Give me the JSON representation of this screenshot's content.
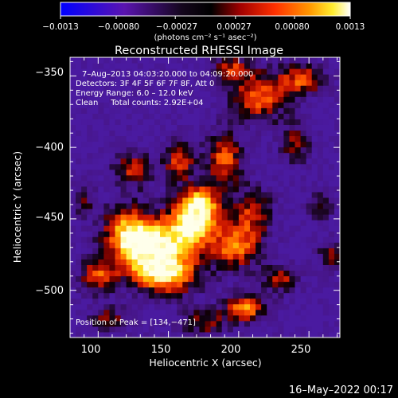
{
  "chart_data": {
    "type": "heatmap",
    "title": "Reconstructed RHESSI Image",
    "xlabel": "Heliocentric X (arcsec)",
    "ylabel": "Heliocentric Y (arcsec)",
    "xlim": [
      80,
      272
    ],
    "ylim": [
      -533,
      -337
    ],
    "x_ticks": [
      100,
      150,
      200,
      250
    ],
    "y_ticks": [
      -350,
      -400,
      -450,
      -500
    ],
    "x_tick_labels": [
      "100",
      "150",
      "200",
      "250"
    ],
    "y_tick_labels": [
      "−350",
      "−400",
      "−450",
      "−500"
    ],
    "colorbar": {
      "range": [
        -0.0013,
        0.0013
      ],
      "tick_labels": [
        "−0.0013",
        "−0.00080",
        "−0.00027",
        "0.00027",
        "0.00080",
        "0.0013"
      ],
      "units_label": "(photons cm⁻² s⁻¹ asec⁻²)"
    },
    "annotations": [
      "7–Aug–2013 04:03:20.000 to 04:09:20.000",
      "Detectors: 3F 4F 5F 6F 7F 8F, Att 0",
      "Energy Range: 6.0 – 12.0 keV",
      "Clean     Total counts: 2.92E+04",
      "Position of Peak = [134,−471]"
    ],
    "peak": [
      134,
      -471
    ],
    "sources": [
      {
        "x": 134,
        "y": -471,
        "peak": 1.0,
        "sx": 16,
        "sy": 13
      },
      {
        "x": 165,
        "y": -457,
        "peak": 0.82,
        "sx": 14,
        "sy": 12
      },
      {
        "x": 172,
        "y": -440,
        "peak": 0.86,
        "sx": 10,
        "sy": 9
      },
      {
        "x": 150,
        "y": -488,
        "peak": 0.78,
        "sx": 16,
        "sy": 10
      },
      {
        "x": 120,
        "y": -455,
        "peak": 0.55,
        "sx": 12,
        "sy": 12
      },
      {
        "x": 198,
        "y": -470,
        "peak": 0.65,
        "sx": 12,
        "sy": 11
      },
      {
        "x": 210,
        "y": -445,
        "peak": 0.5,
        "sx": 10,
        "sy": 12
      },
      {
        "x": 205,
        "y": -512,
        "peak": 0.7,
        "sx": 10,
        "sy": 7
      },
      {
        "x": 230,
        "y": -492,
        "peak": 0.45,
        "sx": 9,
        "sy": 7
      },
      {
        "x": 100,
        "y": -490,
        "peak": 0.55,
        "sx": 9,
        "sy": 9
      },
      {
        "x": 125,
        "y": -415,
        "peak": 0.48,
        "sx": 10,
        "sy": 9
      },
      {
        "x": 158,
        "y": -410,
        "peak": 0.55,
        "sx": 8,
        "sy": 10
      },
      {
        "x": 190,
        "y": -408,
        "peak": 0.6,
        "sx": 9,
        "sy": 14
      },
      {
        "x": 215,
        "y": -365,
        "peak": 0.62,
        "sx": 14,
        "sy": 12
      },
      {
        "x": 245,
        "y": -352,
        "peak": 0.55,
        "sx": 12,
        "sy": 8
      },
      {
        "x": 195,
        "y": -345,
        "peak": 0.48,
        "sx": 10,
        "sy": 7
      },
      {
        "x": 240,
        "y": -398,
        "peak": 0.4,
        "sx": 8,
        "sy": 10
      },
      {
        "x": 258,
        "y": -440,
        "peak": 0.4,
        "sx": 6,
        "sy": 7
      },
      {
        "x": 265,
        "y": -475,
        "peak": 0.42,
        "sx": 6,
        "sy": 7
      },
      {
        "x": 108,
        "y": -520,
        "peak": 0.4,
        "sx": 10,
        "sy": 6
      },
      {
        "x": 175,
        "y": -522,
        "peak": 0.42,
        "sx": 12,
        "sy": 7
      },
      {
        "x": 90,
        "y": -437,
        "peak": 0.3,
        "sx": 6,
        "sy": 9
      }
    ]
  },
  "footer": {
    "timestamp": "16–May–2022 00:17"
  }
}
